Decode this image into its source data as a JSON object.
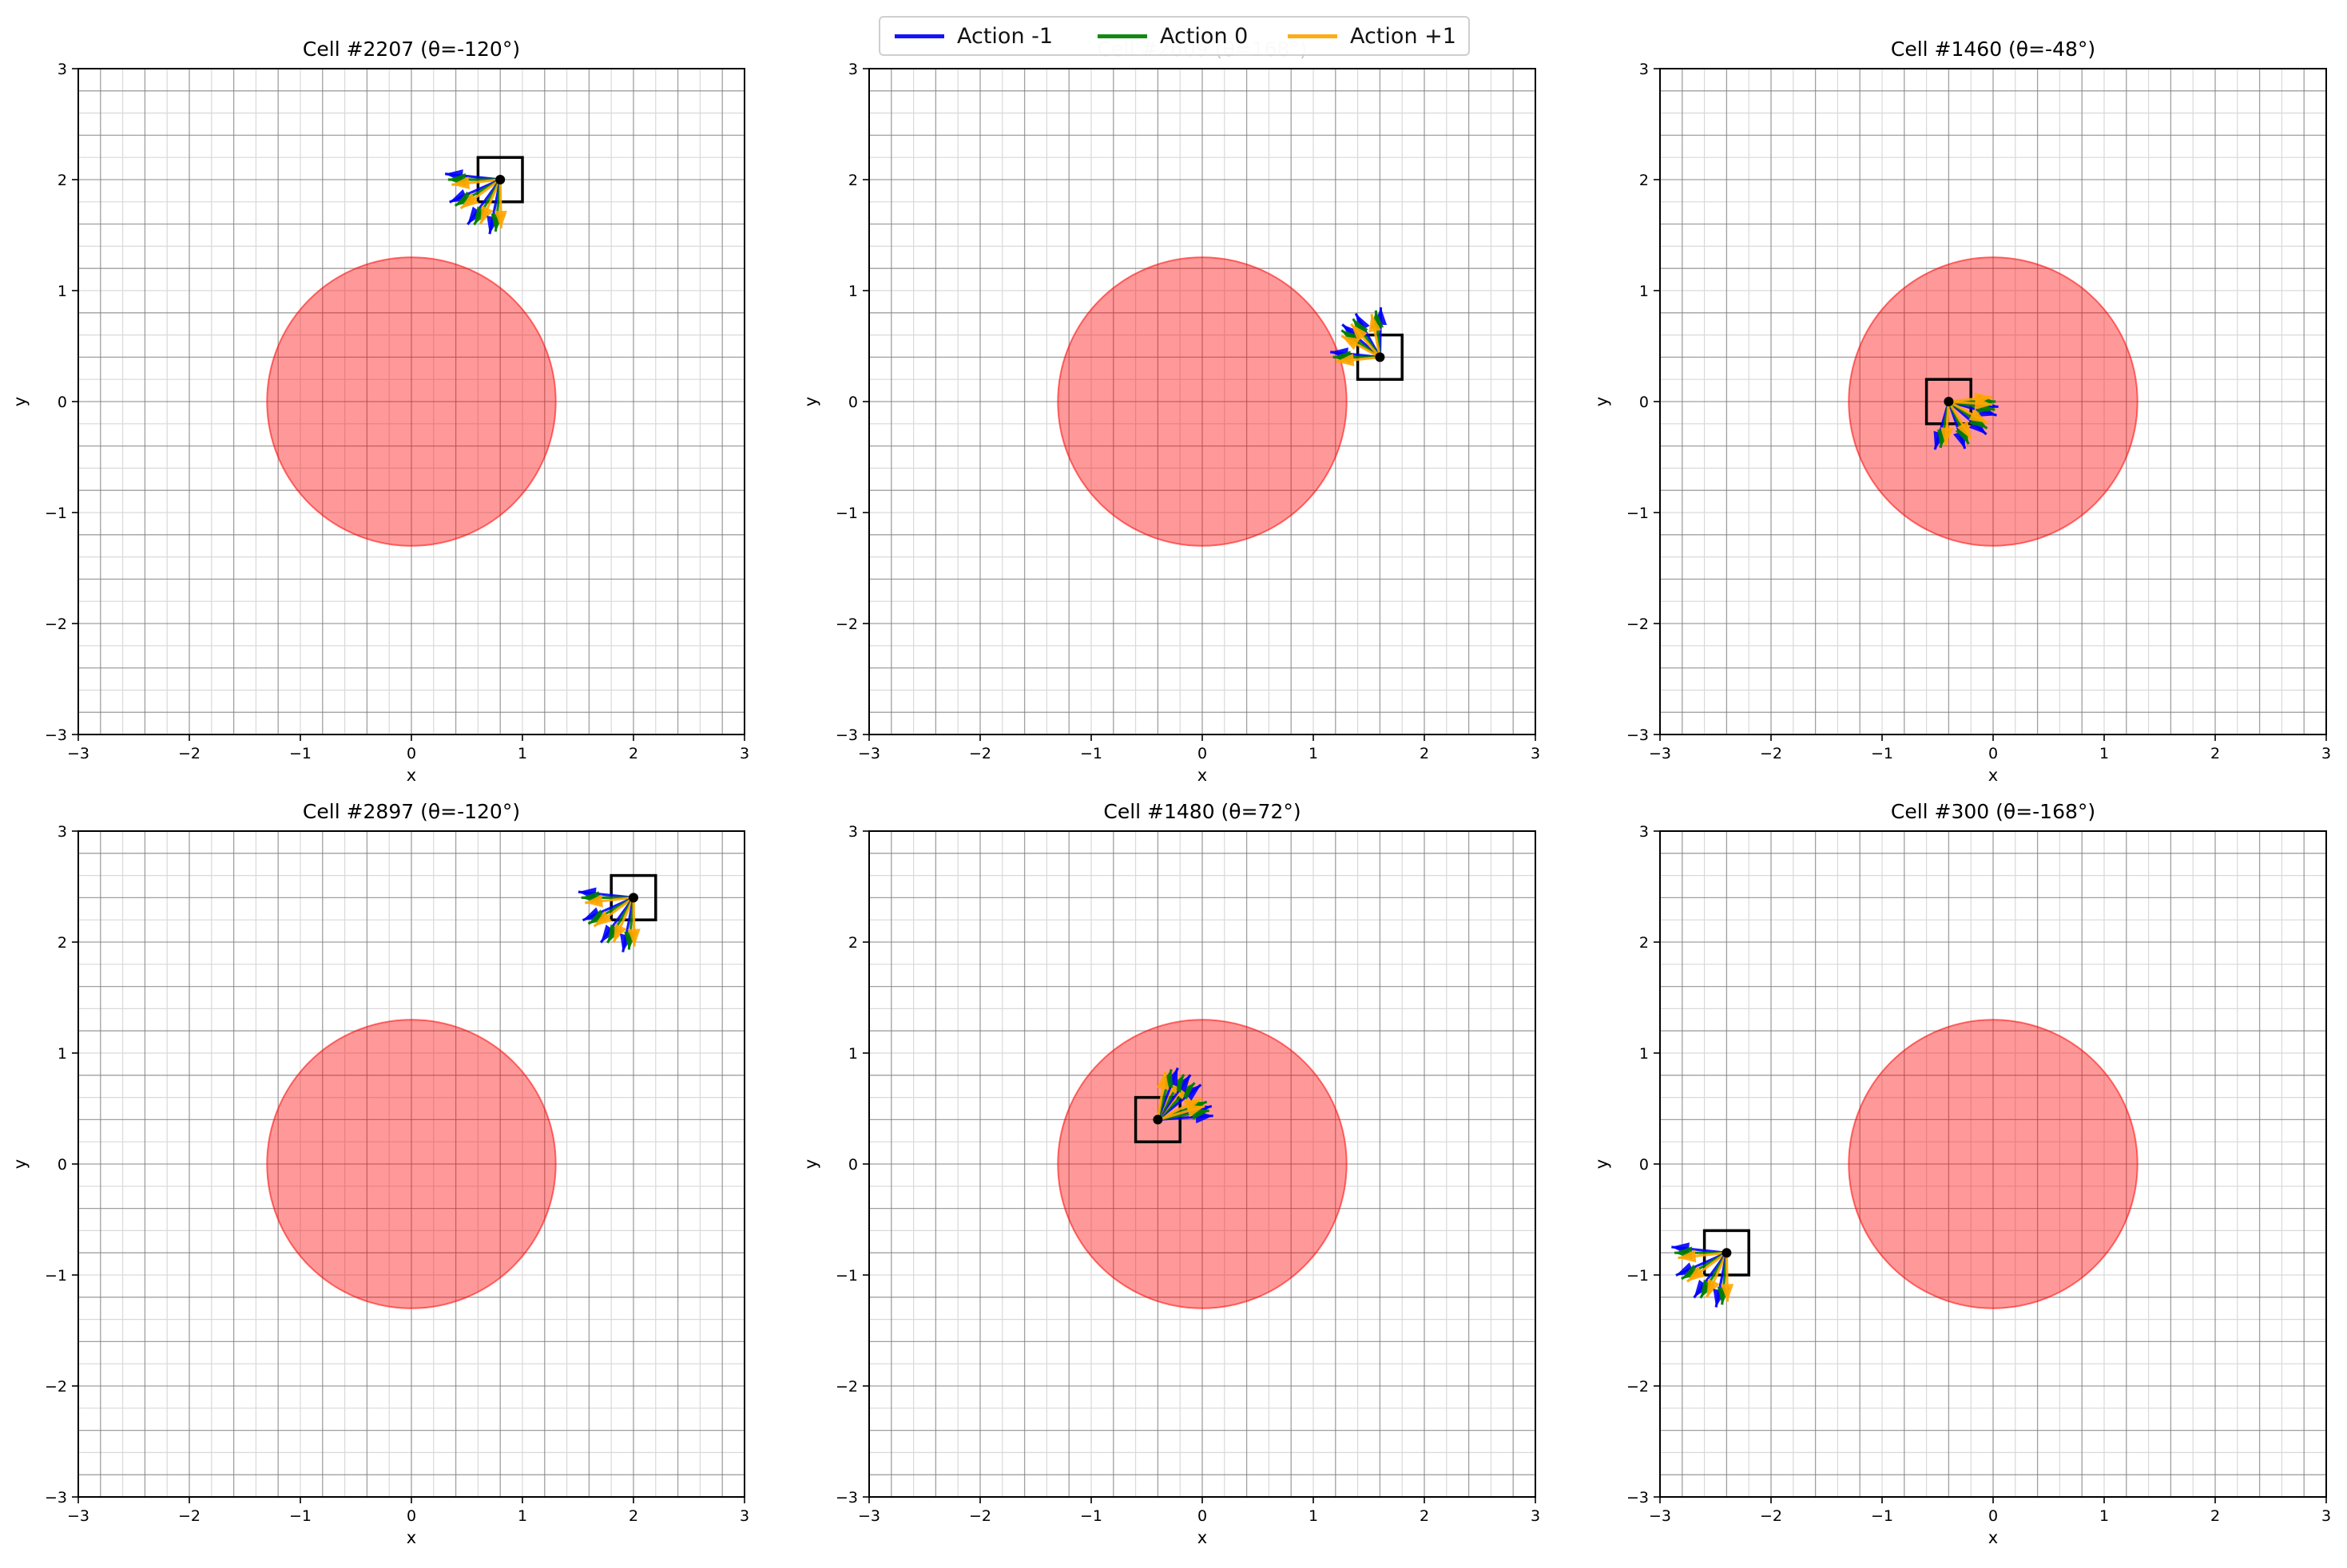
{
  "chart_data": {
    "type": "vector-field-grid",
    "colors": {
      "action_minus": "#0000ff",
      "action_zero": "#008000",
      "action_plus": "#ffa500",
      "obstacle": "#ff0000",
      "obstacle_alpha": 0.4,
      "cell_marker": "#000000",
      "grid_major": "#808080",
      "grid_minor": "#d9d9d9"
    },
    "legend": {
      "placement": "top-center",
      "entries": [
        {
          "label": "Action -1",
          "color": "#0000ff"
        },
        {
          "label": "Action 0",
          "color": "#008000"
        },
        {
          "label": "Action +1",
          "color": "#ffa500"
        }
      ]
    },
    "axes_common": {
      "xlabel": "x",
      "ylabel": "y",
      "xlim": [
        -3,
        3
      ],
      "ylim": [
        -3,
        3
      ],
      "ticks": [
        -3,
        -2,
        -1,
        0,
        1,
        2,
        3
      ],
      "tick_labels": [
        "−3",
        "−2",
        "−1",
        "0",
        "1",
        "2",
        "3"
      ],
      "obstacle_center": [
        0,
        0
      ],
      "obstacle_radius": 1.3,
      "cell_size": 0.4
    },
    "panels": [
      {
        "title": "Cell #2207 (θ=-120°)",
        "cell_center": [
          0.8,
          2.0
        ],
        "arrow_angles_deg": [
          180,
          210,
          240,
          265
        ],
        "arrow_length": 0.5
      },
      {
        "title": "Cell #2609 (θ=168°)",
        "cell_center": [
          1.6,
          0.4
        ],
        "arrow_angles_deg": [
          180,
          145,
          125,
          95
        ],
        "arrow_length": 0.45,
        "title_faded": true
      },
      {
        "title": "Cell #1460 (θ=-48°)",
        "cell_center": [
          -0.4,
          0.0
        ],
        "arrow_angles_deg": [
          0,
          -10,
          -35,
          -65,
          -100
        ],
        "arrow_length": 0.45
      },
      {
        "title": "Cell #2897 (θ=-120°)",
        "cell_center": [
          2.0,
          2.4
        ],
        "arrow_angles_deg": [
          180,
          210,
          240,
          265
        ],
        "arrow_length": 0.5
      },
      {
        "title": "Cell #1480 (θ=72°)",
        "cell_center": [
          -0.4,
          0.4
        ],
        "arrow_angles_deg": [
          20,
          45,
          60,
          75,
          10
        ],
        "arrow_length": 0.5
      },
      {
        "title": "Cell #300 (θ=-168°)",
        "cell_center": [
          -2.4,
          -0.8
        ],
        "arrow_angles_deg": [
          180,
          210,
          240,
          265
        ],
        "arrow_length": 0.5
      }
    ]
  }
}
